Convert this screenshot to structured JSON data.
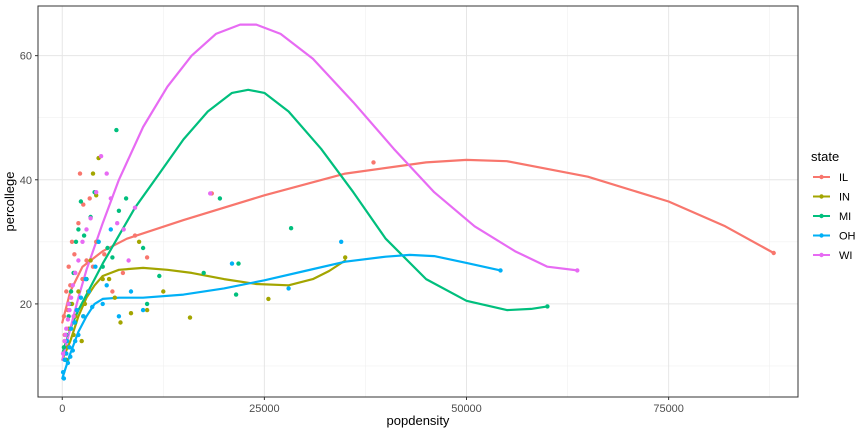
{
  "chart_data": {
    "type": "scatter",
    "xlabel": "popdensity",
    "ylabel": "percollege",
    "xlim": [
      -3000,
      91000
    ],
    "ylim": [
      5,
      68
    ],
    "x_ticks": [
      0,
      25000,
      50000,
      75000
    ],
    "x_tick_labels": [
      "0",
      "25000",
      "50000",
      "75000"
    ],
    "y_ticks": [
      20,
      40,
      60
    ],
    "y_tick_labels": [
      "20",
      "40",
      "60"
    ],
    "grid": true,
    "legend": {
      "title": "state",
      "position": "right"
    },
    "series": [
      {
        "name": "IL",
        "color": "#F8766D",
        "points": [
          [
            200,
            18
          ],
          [
            500,
            22
          ],
          [
            800,
            26
          ],
          [
            1200,
            30
          ],
          [
            1600,
            25
          ],
          [
            2000,
            33
          ],
          [
            2200,
            41
          ],
          [
            2600,
            36
          ],
          [
            3000,
            27
          ],
          [
            3400,
            37
          ],
          [
            4200,
            30
          ],
          [
            5200,
            28
          ],
          [
            6200,
            22
          ],
          [
            7500,
            25
          ],
          [
            9000,
            31
          ],
          [
            10500,
            27.5
          ],
          [
            18500,
            37.8
          ],
          [
            38500,
            42.8
          ],
          [
            88000,
            28.2
          ],
          [
            300,
            15
          ],
          [
            700,
            19
          ],
          [
            1000,
            23
          ],
          [
            1500,
            28
          ],
          [
            2500,
            24
          ],
          [
            3800,
            26
          ]
        ],
        "smooth": [
          [
            0,
            17
          ],
          [
            1000,
            22
          ],
          [
            2500,
            26
          ],
          [
            5000,
            28.5
          ],
          [
            8000,
            30.5
          ],
          [
            15000,
            33.5
          ],
          [
            25000,
            37.5
          ],
          [
            35000,
            41
          ],
          [
            45000,
            42.8
          ],
          [
            50000,
            43.2
          ],
          [
            55000,
            43
          ],
          [
            65000,
            40.5
          ],
          [
            75000,
            36.5
          ],
          [
            82000,
            32.5
          ],
          [
            88000,
            28.2
          ]
        ]
      },
      {
        "name": "IN",
        "color": "#A3A500",
        "points": [
          [
            300,
            14
          ],
          [
            500,
            11
          ],
          [
            800,
            16
          ],
          [
            1200,
            20
          ],
          [
            1600,
            18
          ],
          [
            2000,
            22
          ],
          [
            2400,
            14
          ],
          [
            2800,
            20
          ],
          [
            3500,
            27
          ],
          [
            3800,
            41
          ],
          [
            4200,
            37.5
          ],
          [
            4500,
            43.5
          ],
          [
            5000,
            24
          ],
          [
            5800,
            24
          ],
          [
            6500,
            21
          ],
          [
            7200,
            17
          ],
          [
            8500,
            18.5
          ],
          [
            9500,
            30
          ],
          [
            10500,
            19
          ],
          [
            12500,
            22
          ],
          [
            15800,
            17.8
          ],
          [
            25500,
            20.8
          ],
          [
            35000,
            27.5
          ],
          [
            700,
            13
          ],
          [
            1400,
            15
          ],
          [
            2600,
            18
          ],
          [
            3200,
            22
          ]
        ],
        "smooth": [
          [
            0,
            11
          ],
          [
            1000,
            14
          ],
          [
            2000,
            18
          ],
          [
            3000,
            21
          ],
          [
            4000,
            23
          ],
          [
            5000,
            24.5
          ],
          [
            7000,
            25.5
          ],
          [
            10000,
            25.8
          ],
          [
            13000,
            25.5
          ],
          [
            16000,
            25
          ],
          [
            20000,
            24
          ],
          [
            24000,
            23.2
          ],
          [
            28000,
            23
          ],
          [
            31000,
            24
          ],
          [
            33000,
            25.3
          ],
          [
            35000,
            27
          ]
        ]
      },
      {
        "name": "MI",
        "color": "#00BF7D",
        "points": [
          [
            200,
            13
          ],
          [
            500,
            15
          ],
          [
            800,
            18
          ],
          [
            1100,
            22
          ],
          [
            1400,
            25
          ],
          [
            1700,
            30
          ],
          [
            2000,
            32
          ],
          [
            2300,
            36.5
          ],
          [
            2700,
            31
          ],
          [
            3000,
            24
          ],
          [
            3500,
            34
          ],
          [
            4000,
            38
          ],
          [
            4500,
            30
          ],
          [
            5000,
            26
          ],
          [
            5600,
            29
          ],
          [
            6200,
            27.5
          ],
          [
            6700,
            48
          ],
          [
            7000,
            35
          ],
          [
            7900,
            37
          ],
          [
            10000,
            29
          ],
          [
            10500,
            20
          ],
          [
            12000,
            24.5
          ],
          [
            17500,
            25
          ],
          [
            19500,
            37
          ],
          [
            21500,
            21.5
          ],
          [
            21800,
            26.5
          ],
          [
            28300,
            32.2
          ],
          [
            60000,
            19.6
          ],
          [
            400,
            11
          ],
          [
            900,
            20
          ],
          [
            1600,
            17
          ]
        ],
        "smooth": [
          [
            0,
            12
          ],
          [
            1000,
            16
          ],
          [
            2000,
            19
          ],
          [
            3000,
            21.5
          ],
          [
            4000,
            24
          ],
          [
            5000,
            26.5
          ],
          [
            7000,
            31
          ],
          [
            9000,
            35.5
          ],
          [
            12000,
            41
          ],
          [
            15000,
            46.5
          ],
          [
            18000,
            51
          ],
          [
            21000,
            54
          ],
          [
            23000,
            54.5
          ],
          [
            25000,
            54
          ],
          [
            28000,
            51
          ],
          [
            32000,
            45
          ],
          [
            36000,
            38
          ],
          [
            40000,
            30.5
          ],
          [
            45000,
            24
          ],
          [
            50000,
            20.5
          ],
          [
            55000,
            19
          ],
          [
            58000,
            19.2
          ],
          [
            60000,
            19.6
          ]
        ]
      },
      {
        "name": "OH",
        "color": "#00B0F6",
        "points": [
          [
            100,
            9
          ],
          [
            300,
            11
          ],
          [
            500,
            12
          ],
          [
            700,
            10.5
          ],
          [
            900,
            13
          ],
          [
            1100,
            16
          ],
          [
            1300,
            12.5
          ],
          [
            1500,
            17
          ],
          [
            1800,
            19
          ],
          [
            2000,
            15
          ],
          [
            2300,
            21
          ],
          [
            2600,
            18
          ],
          [
            2900,
            24
          ],
          [
            3300,
            22
          ],
          [
            3700,
            19.5
          ],
          [
            4100,
            26
          ],
          [
            4500,
            30
          ],
          [
            5000,
            20
          ],
          [
            5500,
            23
          ],
          [
            6000,
            32
          ],
          [
            7000,
            18
          ],
          [
            8500,
            22
          ],
          [
            10000,
            19
          ],
          [
            21000,
            26.5
          ],
          [
            28000,
            22.5
          ],
          [
            34500,
            30
          ],
          [
            54200,
            25.4
          ],
          [
            200,
            8
          ],
          [
            600,
            14
          ],
          [
            1000,
            11.5
          ],
          [
            1600,
            14
          ]
        ],
        "smooth": [
          [
            0,
            8
          ],
          [
            1000,
            12
          ],
          [
            2000,
            15.5
          ],
          [
            3000,
            18
          ],
          [
            4000,
            20
          ],
          [
            5000,
            20.8
          ],
          [
            7000,
            21
          ],
          [
            10000,
            21
          ],
          [
            15000,
            21.5
          ],
          [
            20000,
            22.5
          ],
          [
            25000,
            23.8
          ],
          [
            30000,
            25.3
          ],
          [
            35000,
            26.8
          ],
          [
            40000,
            27.6
          ],
          [
            43000,
            27.9
          ],
          [
            46000,
            27.7
          ],
          [
            50000,
            26.6
          ],
          [
            54200,
            25.4
          ]
        ]
      },
      {
        "name": "WI",
        "color": "#E76BF3",
        "points": [
          [
            100,
            12
          ],
          [
            300,
            14
          ],
          [
            500,
            16
          ],
          [
            700,
            17.5
          ],
          [
            900,
            19
          ],
          [
            1100,
            21
          ],
          [
            1300,
            23
          ],
          [
            1600,
            25
          ],
          [
            2000,
            27
          ],
          [
            2500,
            30
          ],
          [
            3000,
            32
          ],
          [
            3500,
            33.8
          ],
          [
            4200,
            38
          ],
          [
            4800,
            43.8
          ],
          [
            5500,
            41
          ],
          [
            6000,
            37
          ],
          [
            6800,
            33
          ],
          [
            7600,
            32
          ],
          [
            8200,
            27
          ],
          [
            9000,
            35.5
          ],
          [
            18300,
            37.8
          ],
          [
            63700,
            25.4
          ],
          [
            400,
            15
          ],
          [
            800,
            20
          ],
          [
            1400,
            18
          ]
        ],
        "smooth": [
          [
            0,
            11
          ],
          [
            1000,
            16
          ],
          [
            2000,
            21
          ],
          [
            3000,
            25.5
          ],
          [
            5000,
            33
          ],
          [
            7000,
            40
          ],
          [
            10000,
            48.5
          ],
          [
            13000,
            55
          ],
          [
            16000,
            60
          ],
          [
            19000,
            63.5
          ],
          [
            22000,
            65
          ],
          [
            24000,
            65
          ],
          [
            27000,
            63.5
          ],
          [
            31000,
            59.5
          ],
          [
            36000,
            52.5
          ],
          [
            41000,
            45
          ],
          [
            46000,
            38
          ],
          [
            51000,
            32.5
          ],
          [
            56000,
            28.5
          ],
          [
            60000,
            26
          ],
          [
            63700,
            25.4
          ]
        ]
      }
    ]
  }
}
